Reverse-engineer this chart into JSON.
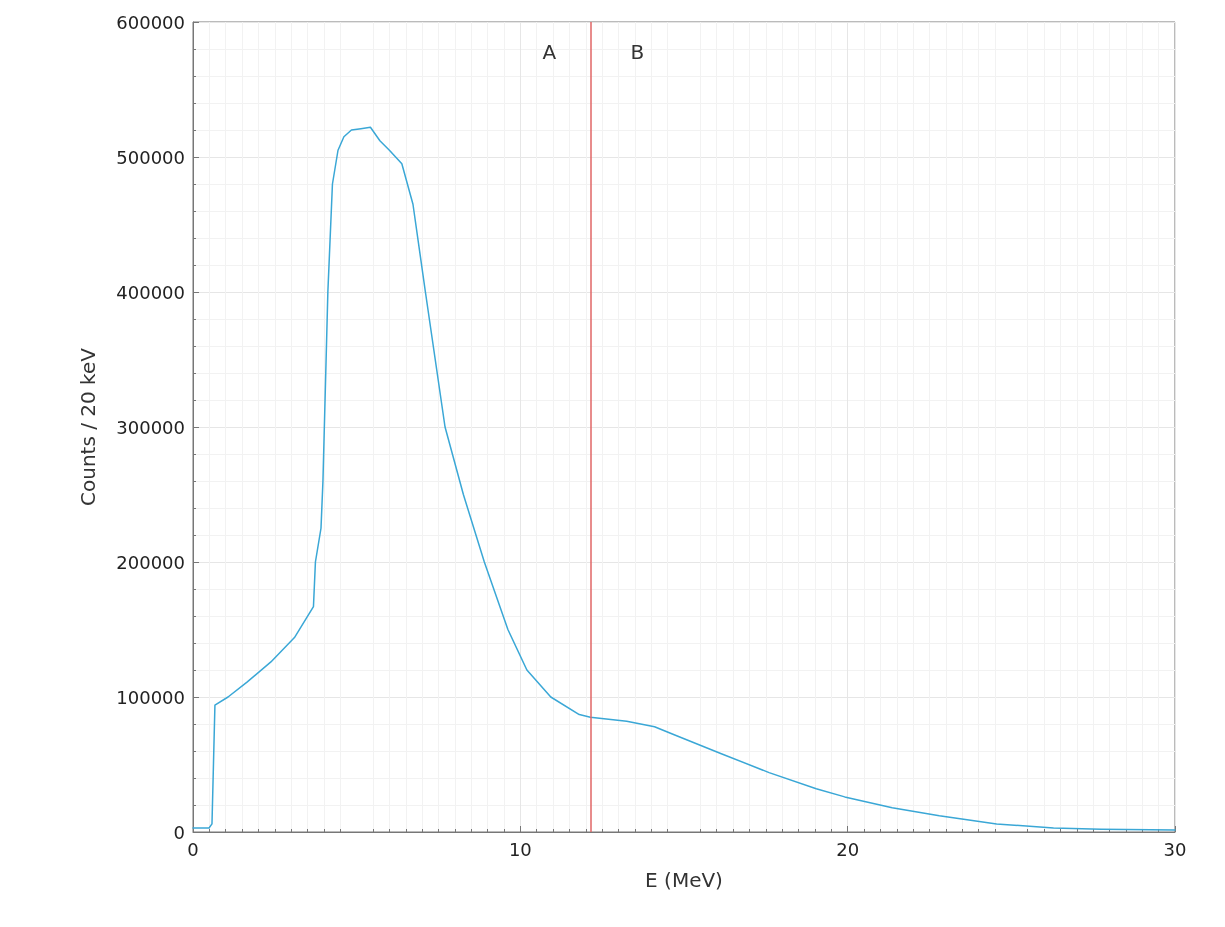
{
  "chart_data": {
    "type": "line",
    "xlabel": "E (MeV)",
    "ylabel": "Counts / 20 keV",
    "x": [
      0,
      0.49,
      0.58,
      0.67,
      1.07,
      1.65,
      2.38,
      3.1,
      3.68,
      3.74,
      3.91,
      3.97,
      4.12,
      4.26,
      4.43,
      4.61,
      4.84,
      5.13,
      5.42,
      5.71,
      6.0,
      6.38,
      6.72,
      7.1,
      7.7,
      8.26,
      8.9,
      9.62,
      10.2,
      10.93,
      11.8,
      12.14,
      13.25,
      14.1,
      14.7,
      16.14,
      17.6,
      19.04,
      19.91,
      21.36,
      22.8,
      24.55,
      26.29,
      27.74,
      30
    ],
    "series": [
      {
        "color": "#3aa7d6",
        "values": [
          3000,
          3000,
          6000,
          94000,
          100000,
          111000,
          126000,
          144000,
          167000,
          200000,
          225000,
          260000,
          400000,
          480000,
          505000,
          515000,
          520000,
          521000,
          522000,
          512000,
          505000,
          495000,
          465000,
          400000,
          300000,
          250000,
          200000,
          150000,
          120000,
          100000,
          87000,
          85000,
          82000,
          78000,
          72000,
          58000,
          44000,
          32000,
          26000,
          18000,
          12000,
          6000,
          3000,
          2000,
          1500
        ]
      }
    ],
    "xlim": [
      0,
      30
    ],
    "xticks": [
      0,
      10,
      20,
      30
    ],
    "ylim": [
      0,
      600000
    ],
    "yticks": [
      0,
      100000,
      200000,
      300000,
      400000,
      500000,
      600000
    ],
    "grid": true,
    "marker": "none",
    "line_style": "solid",
    "ref_lines": [
      {
        "axis": "x",
        "value": 12.14,
        "color": "#e06666"
      }
    ],
    "annotations": [
      "A",
      "B"
    ]
  }
}
